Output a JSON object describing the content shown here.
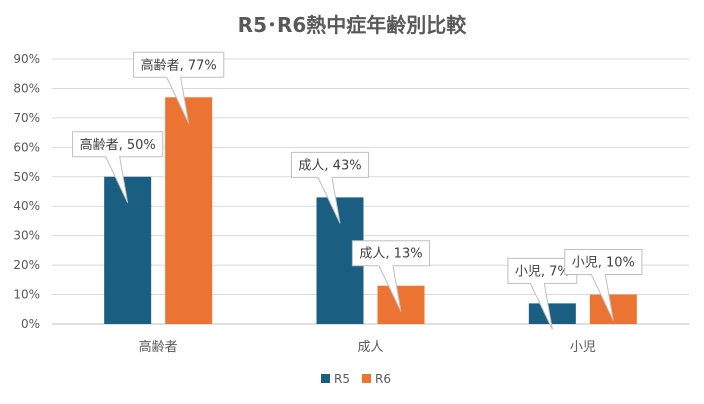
{
  "chart_data": {
    "type": "bar",
    "title": "R5･R6熱中症年齢別比較",
    "categories": [
      "高齢者",
      "成人",
      "小児"
    ],
    "series": [
      {
        "name": "R5",
        "values": [
          50,
          43,
          7
        ],
        "color": "#1a5e82",
        "labels": [
          "高齢者, 50%",
          "成人, 43%",
          "小児, 7%"
        ]
      },
      {
        "name": "R6",
        "values": [
          77,
          13,
          10
        ],
        "color": "#ec7432",
        "labels": [
          "高齢者, 77%",
          "成人, 13%",
          "小児, 10%"
        ]
      }
    ],
    "yticks": [
      "0%",
      "10%",
      "20%",
      "30%",
      "40%",
      "50%",
      "60%",
      "70%",
      "80%",
      "90%"
    ],
    "ylim": [
      0,
      90
    ],
    "grid": true,
    "legend_position": "bottom"
  }
}
